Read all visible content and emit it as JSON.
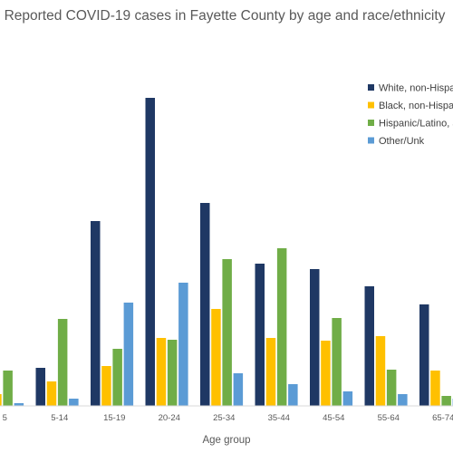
{
  "chart_data": {
    "type": "bar",
    "title": "Reported COVID-19 cases in Fayette County by age and race/ethnicity",
    "xlabel": "Age group",
    "ylabel": "",
    "categories": [
      "<5",
      "5-14",
      "15-19",
      "20-24",
      "25-34",
      "35-44",
      "45-54",
      "55-64",
      "65-74"
    ],
    "category_labels_visible": [
      "5",
      "5-14",
      "15-19",
      "20-24",
      "25-34",
      "35-44",
      "45-54",
      "55-64",
      "65-74"
    ],
    "series": [
      {
        "name": "White, non-Hispanic",
        "legend_label_visible": "White, non-Hispa",
        "color": "#1f3864",
        "values": [
          0,
          42,
          204,
          340,
          224,
          157,
          151,
          132,
          112
        ]
      },
      {
        "name": "Black, non-Hispanic",
        "legend_label_visible": "Black, non-Hispan",
        "color": "#ffc000",
        "values": [
          13,
          27,
          44,
          75,
          107,
          75,
          72,
          77,
          39
        ]
      },
      {
        "name": "Hispanic/Latino, any race",
        "legend_label_visible": "Hispanic/Latino, a",
        "color": "#70ad47",
        "values": [
          39,
          0,
          0,
          0,
          0,
          0,
          0,
          0,
          0
        ]
      },
      {
        "name": "Other/Unk",
        "legend_label_visible": "Other/Unk",
        "color": "#5b9bd5",
        "values": [
          3,
          8,
          114,
          136,
          36,
          24,
          16,
          13,
          8
        ]
      }
    ],
    "series_full_values": {
      "Hispanic/Latino, any race": [
        39,
        96,
        63,
        73,
        162,
        174,
        97,
        40,
        11
      ]
    },
    "ylim": [
      0,
      360
    ],
    "grid": false,
    "legend_position": "right"
  }
}
